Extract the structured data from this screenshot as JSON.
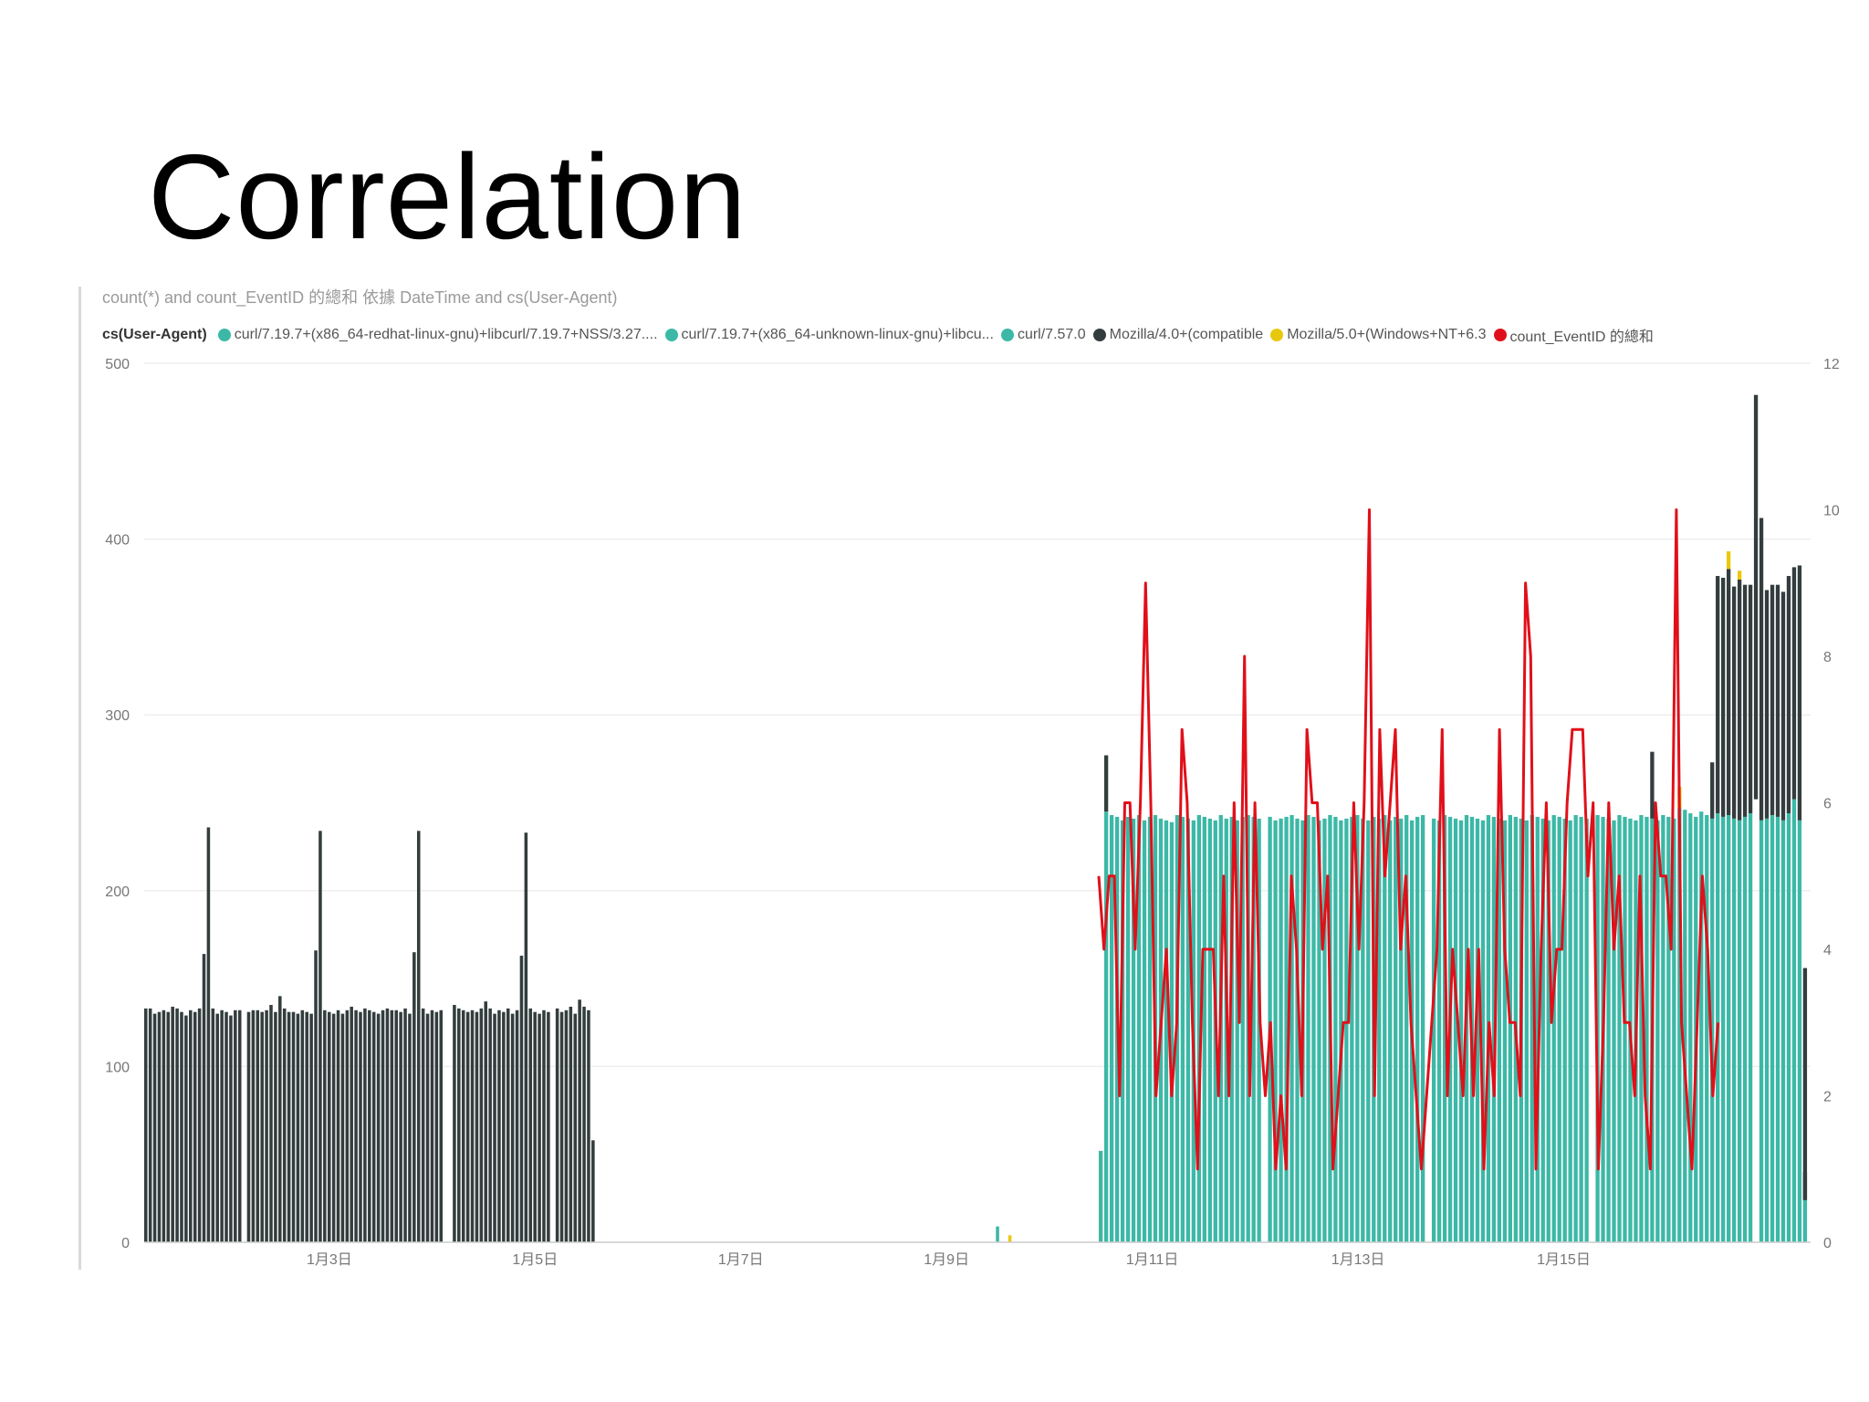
{
  "slide": {
    "title": "Correlation"
  },
  "chart_data": {
    "type": "bar",
    "title": "count(*) and count_EventID 的總和 依據 DateTime and cs(User-Agent)",
    "legend_title": "cs(User-Agent)",
    "legend_position": "top-left",
    "grid": true,
    "series": [
      {
        "name": "curl/7.19.7+(x86_64-redhat-linux-gnu)+libcurl/7.19.7+NSS/3.27....",
        "color": "#3cb8a6",
        "kind": "bar"
      },
      {
        "name": "curl/7.19.7+(x86_64-unknown-linux-gnu)+libcu...",
        "color": "#3cb8a6",
        "kind": "bar"
      },
      {
        "name": "curl/7.57.0",
        "color": "#3cb8a6",
        "kind": "bar"
      },
      {
        "name": "Mozilla/4.0+(compatible",
        "color": "#333d3d",
        "kind": "bar"
      },
      {
        "name": "Mozilla/5.0+(Windows+NT+6.3",
        "color": "#e8c80e",
        "kind": "bar"
      },
      {
        "name": "count_EventID 的總和",
        "color": "#e0101a",
        "kind": "line"
      }
    ],
    "y_left": {
      "min": 0,
      "max": 500,
      "ticks": [
        "0",
        "100",
        "200",
        "300",
        "400",
        "500"
      ]
    },
    "y_right": {
      "min": 0,
      "max": 12,
      "ticks": [
        "0",
        "2",
        "4",
        "6",
        "8",
        "10",
        "12"
      ]
    },
    "x_axis": {
      "min": 1.2,
      "max": 17.4,
      "ticks": [
        {
          "value": 3,
          "label": "1月3日"
        },
        {
          "value": 5,
          "label": "1月5日"
        },
        {
          "value": 7,
          "label": "1月7日"
        },
        {
          "value": 9,
          "label": "1月9日"
        },
        {
          "value": 11,
          "label": "1月11日"
        },
        {
          "value": 13,
          "label": "1月13日"
        },
        {
          "value": 15,
          "label": "1月15日"
        }
      ]
    },
    "mozilla4_counts": [
      [
        133,
        133,
        130,
        131,
        132,
        131,
        134,
        133,
        131,
        129,
        132,
        131,
        133,
        164,
        236,
        133,
        130,
        132,
        131,
        129,
        132,
        132
      ],
      [
        131,
        132,
        132,
        131,
        132,
        135,
        131,
        140,
        133,
        131,
        131,
        130,
        132,
        131,
        130,
        166,
        234,
        132,
        131,
        130,
        132,
        130,
        132
      ],
      [
        134,
        132,
        131,
        133,
        132,
        131,
        130,
        132,
        133,
        132,
        132,
        131,
        133,
        130,
        165,
        234,
        133,
        130,
        132,
        131,
        132
      ],
      [
        135,
        133,
        132,
        131,
        132,
        131,
        133,
        137,
        133,
        130,
        132,
        131,
        133,
        130,
        132,
        163,
        233,
        133,
        131,
        130,
        132,
        131
      ],
      [
        133,
        131,
        132,
        134,
        130,
        138,
        134,
        132,
        58
      ]
    ],
    "mozilla4_start": [
      1.2,
      2.2,
      3.2,
      4.2,
      5.2
    ],
    "bar_step": 0.0435,
    "small_bars": [
      {
        "x": 9.48,
        "value": 9,
        "color": "#3cb8a6"
      },
      {
        "x": 9.6,
        "value": 4,
        "color": "#e8c80e"
      }
    ],
    "curl_start": 10.48,
    "curl_counts": [
      52,
      245,
      243,
      242,
      240,
      242,
      241,
      243,
      240,
      242,
      243,
      241,
      240,
      239,
      243,
      242,
      241,
      240,
      243,
      242,
      241,
      240,
      243,
      241,
      242,
      240,
      242,
      243,
      242,
      241,
      243,
      242,
      240,
      241,
      242,
      243,
      241,
      240,
      243,
      242,
      240,
      241,
      243,
      242,
      240,
      241,
      242,
      243,
      241,
      240,
      242,
      241,
      243,
      240,
      242,
      241,
      243,
      240,
      242,
      243,
      242,
      241,
      240,
      243,
      242,
      241,
      240,
      243,
      242,
      241,
      240,
      243,
      242,
      241,
      240,
      243,
      242,
      241,
      240,
      243,
      242,
      241,
      240,
      243,
      242,
      241,
      240,
      243,
      242,
      241,
      240,
      243,
      242,
      241,
      240,
      243,
      242,
      241,
      240,
      243,
      242,
      241,
      240,
      243,
      242,
      241,
      240,
      243,
      242,
      241,
      240,
      243,
      242,
      241,
      240,
      243,
      242,
      241,
      240,
      243,
      242,
      241,
      240,
      243,
      242,
      241,
      240,
      243,
      242,
      241,
      240,
      243,
      242,
      241,
      240,
      243,
      242,
      241,
      240,
      243,
      242,
      241,
      240,
      243,
      242,
      241,
      240,
      243,
      242,
      241,
      240,
      243,
      242,
      241,
      240,
      243,
      242,
      241,
      240,
      243,
      242,
      241,
      240,
      243,
      242,
      241,
      240,
      243,
      242,
      241,
      240,
      243,
      242,
      241,
      240,
      243,
      242,
      241,
      240,
      243,
      242,
      241,
      240,
      243,
      242,
      241,
      240,
      243,
      242,
      241,
      240,
      243,
      242,
      241,
      240,
      243,
      242,
      241,
      240,
      243,
      242,
      241,
      240,
      243,
      242,
      241,
      240,
      243,
      242,
      241,
      240,
      243,
      242,
      241,
      240,
      243,
      242,
      241,
      240,
      243,
      242,
      241,
      240,
      243,
      242,
      241,
      240,
      243,
      242,
      241,
      240,
      243,
      242,
      241,
      240,
      243,
      242,
      241,
      240,
      243,
      242,
      241,
      240,
      243,
      242,
      241,
      240,
      243,
      242,
      241,
      240,
      243,
      242,
      241,
      240,
      243,
      242,
      241,
      240,
      243,
      242,
      241,
      240,
      243,
      242,
      241,
      240,
      243,
      242,
      241,
      240,
      243,
      242,
      241,
      240,
      243,
      242,
      241,
      240,
      243,
      242,
      241,
      240,
      243,
      242,
      241,
      240,
      243,
      242,
      241,
      240,
      243,
      242,
      241,
      240,
      243,
      242,
      241,
      240,
      243,
      242,
      241,
      240,
      243,
      242,
      241,
      240,
      243,
      242,
      241,
      240,
      243,
      242,
      241,
      240,
      243,
      242,
      241,
      240,
      243,
      242,
      241,
      240,
      243,
      242,
      241,
      240,
      243,
      242,
      241,
      240,
      243,
      242,
      241,
      240,
      243,
      242,
      241,
      240,
      243,
      242,
      241,
      240,
      243,
      242,
      241,
      240,
      243,
      242,
      241,
      240,
      243,
      242,
      241,
      240,
      243,
      242,
      241,
      240,
      243,
      242,
      241,
      240,
      243,
      242,
      241,
      240,
      243,
      242,
      241,
      240,
      243,
      242,
      241,
      240,
      243,
      242,
      241,
      240,
      243,
      242,
      241,
      240,
      243,
      242,
      241,
      240,
      243,
      242,
      241,
      240,
      243,
      242,
      241,
      240,
      243,
      242,
      241,
      240,
      243,
      242,
      241,
      240,
      243,
      242,
      241,
      240,
      243,
      242,
      241,
      240,
      243,
      242,
      241,
      240,
      243,
      242,
      241,
      240,
      243,
      242,
      241,
      240,
      243,
      242,
      241,
      240,
      243,
      242,
      241,
      240,
      243,
      242,
      241,
      240,
      243,
      242,
      241,
      240,
      243,
      242,
      241,
      240,
      243,
      242,
      241,
      240,
      243,
      242,
      241,
      240,
      243,
      242,
      241,
      240,
      243,
      242,
      241,
      240,
      243,
      242,
      241,
      240,
      243,
      242,
      241,
      240,
      243,
      242,
      241,
      240,
      243,
      242,
      241,
      240,
      243,
      242,
      241,
      240,
      243,
      242,
      241,
      240,
      243,
      242,
      241,
      240,
      243,
      242,
      241,
      240,
      243,
      242,
      241,
      240,
      243,
      242,
      241,
      240,
      243,
      242,
      241,
      240,
      243,
      242,
      241,
      240,
      243,
      242,
      241,
      240,
      243,
      242,
      241,
      240,
      243,
      242,
      241,
      240,
      243,
      242,
      241,
      240,
      243,
      242,
      241,
      240,
      243,
      242,
      241,
      240,
      243,
      242,
      241,
      240,
      243,
      242,
      241,
      240,
      243,
      242,
      241,
      240,
      243,
      242,
      241,
      240,
      243,
      242,
      241,
      240,
      243,
      242,
      241,
      240,
      243,
      242,
      241,
      240,
      243,
      242,
      241,
      240,
      243,
      242,
      241,
      240,
      243,
      242,
      241,
      240,
      243,
      242,
      241,
      240,
      243,
      242,
      241,
      240,
      243,
      242,
      241,
      240,
      243,
      242,
      241,
      240,
      243,
      242,
      241,
      240,
      243,
      242,
      241,
      240,
      243,
      242,
      241,
      240,
      243,
      242,
      241,
      240,
      243,
      242,
      241,
      240,
      243,
      242,
      241,
      240,
      243,
      242,
      241,
      240,
      243,
      242,
      241,
      240,
      243,
      242,
      241,
      240,
      243,
      242,
      241,
      240,
      243,
      242,
      241,
      240,
      243,
      242,
      241,
      240,
      243,
      242,
      241,
      240,
      243,
      242,
      241,
      240,
      243,
      242,
      241,
      240,
      243,
      242,
      241,
      240,
      243,
      242,
      241,
      240,
      243,
      242,
      241,
      240,
      243,
      242,
      241,
      240,
      243,
      242,
      241,
      240,
      243,
      242,
      241,
      240,
      243,
      242,
      241,
      240,
      243,
      242,
      241,
      240,
      243,
      242,
      241,
      240,
      243,
      242,
      241,
      240,
      243,
      242,
      241,
      240,
      243,
      242,
      241,
      240,
      243,
      242,
      241,
      240,
      243,
      242,
      241,
      240,
      243,
      242,
      241,
      240,
      243,
      242,
      241,
      240,
      243,
      242,
      241,
      240,
      243,
      242,
      241,
      240,
      243,
      242,
      241,
      240,
      243,
      242,
      241,
      240,
      243,
      242,
      241,
      240,
      243,
      242,
      241,
      240,
      243,
      242,
      241,
      240,
      243,
      242,
      241,
      240,
      243,
      242,
      241,
      240,
      243,
      242,
      241,
      240,
      243,
      242,
      241,
      240,
      243,
      242,
      241,
      240,
      243,
      242,
      241,
      240,
      243,
      242,
      241,
      240,
      243,
      242,
      241,
      240,
      243,
      242,
      241,
      240,
      243,
      242,
      241,
      240,
      243,
      242,
      241,
      240,
      243,
      242,
      241,
      240,
      243,
      242,
      241,
      240,
      243,
      242,
      241,
      240,
      243,
      242,
      241,
      240,
      243,
      242,
      241,
      240,
      243,
      242,
      241,
      240,
      243,
      242,
      241,
      240,
      243,
      242,
      241,
      240,
      243,
      242,
      241,
      240,
      243,
      242,
      241,
      240,
      243,
      242,
      241,
      240,
      243,
      242,
      241,
      240,
      243,
      242,
      241,
      240,
      243,
      242,
      241,
      240,
      243,
      242,
      241,
      240,
      243,
      242,
      241,
      240,
      243,
      242,
      241,
      240,
      243,
      242,
      241,
      240,
      243,
      242,
      241,
      240,
      243,
      242,
      241,
      240,
      243,
      242,
      241,
      240,
      243,
      242,
      241,
      240,
      243,
      242,
      241,
      240,
      243,
      242,
      241,
      240,
      243,
      242,
      241,
      240,
      243,
      242,
      241,
      240,
      243,
      242,
      241,
      240,
      243,
      242,
      241,
      240,
      243,
      242,
      241,
      240,
      243,
      242,
      241,
      240,
      243,
      242,
      241,
      240,
      243,
      242,
      241,
      240,
      243,
      242,
      241,
      240,
      243,
      242,
      241,
      240,
      243,
      242,
      241,
      240,
      243,
      242,
      241,
      240,
      243,
      242,
      241,
      240,
      243,
      242,
      241,
      240,
      243,
      242,
      241,
      240,
      243,
      242,
      241,
      240,
      243,
      242,
      241,
      240,
      243,
      242,
      241,
      240,
      243,
      242,
      241,
      240,
      243,
      242,
      241,
      240,
      243,
      242,
      241,
      240,
      243,
      242,
      241,
      240,
      243,
      242,
      241,
      240
    ],
    "curl_bar_count": 130,
    "curl_gaps_after": [
      29,
      59,
      89,
      119
    ],
    "curl_tail_counts": [
      247,
      246,
      244,
      242,
      245,
      243,
      241,
      244,
      242,
      243,
      241,
      240,
      242,
      244,
      252,
      240,
      241,
      243,
      242,
      240,
      244,
      252,
      240,
      24
    ],
    "dark_on_curl": [
      {
        "index": 1,
        "value": 32
      },
      {
        "index": 101,
        "value": 38
      },
      {
        "index": 112,
        "value": 32
      },
      {
        "index": 113,
        "value": 135
      },
      {
        "index": 114,
        "value": 136
      },
      {
        "index": 115,
        "value": 140
      },
      {
        "index": 116,
        "value": 132
      },
      {
        "index": 117,
        "value": 137
      },
      {
        "index": 118,
        "value": 132
      },
      {
        "index": 119,
        "value": 130
      },
      {
        "index": 120,
        "value": 230
      },
      {
        "index": 121,
        "value": 172
      },
      {
        "index": 122,
        "value": 130
      },
      {
        "index": 123,
        "value": 131
      },
      {
        "index": 124,
        "value": 132
      },
      {
        "index": 125,
        "value": 130
      },
      {
        "index": 126,
        "value": 135
      },
      {
        "index": 127,
        "value": 132
      },
      {
        "index": 128,
        "value": 145
      },
      {
        "index": 129,
        "value": 132
      },
      {
        "index": 130,
        "value": 16
      }
    ],
    "yellow_on_curl": [
      {
        "index": 106,
        "value": 12
      },
      {
        "index": 115,
        "value": 10
      },
      {
        "index": 117,
        "value": 5
      }
    ],
    "eventid_line": [
      5,
      4,
      5,
      5,
      2,
      6,
      6,
      4,
      6,
      9,
      6,
      2,
      3,
      4,
      2,
      3,
      7,
      6,
      3,
      1,
      4,
      4,
      4,
      2,
      5,
      2,
      6,
      3,
      8,
      2,
      6,
      3,
      2,
      3,
      1,
      2,
      1,
      5,
      4,
      2,
      7,
      6,
      6,
      4,
      5,
      1,
      2,
      3,
      3,
      6,
      4,
      6,
      10,
      2,
      7,
      5,
      6,
      7,
      4,
      5,
      3,
      2,
      1,
      2,
      3,
      4,
      7,
      2,
      4,
      3,
      2,
      4,
      2,
      4,
      1,
      3,
      2,
      7,
      4,
      3,
      3,
      2,
      9,
      8,
      1,
      4,
      6,
      3,
      4,
      4,
      6,
      7,
      7,
      7,
      5,
      6,
      1,
      3,
      6,
      4,
      5,
      3,
      3,
      2,
      5,
      2,
      1,
      6,
      5,
      5,
      4,
      10,
      3,
      2,
      1,
      3,
      5,
      4,
      2,
      3
    ],
    "eventid_x_range": [
      10.48,
      16.5
    ]
  }
}
